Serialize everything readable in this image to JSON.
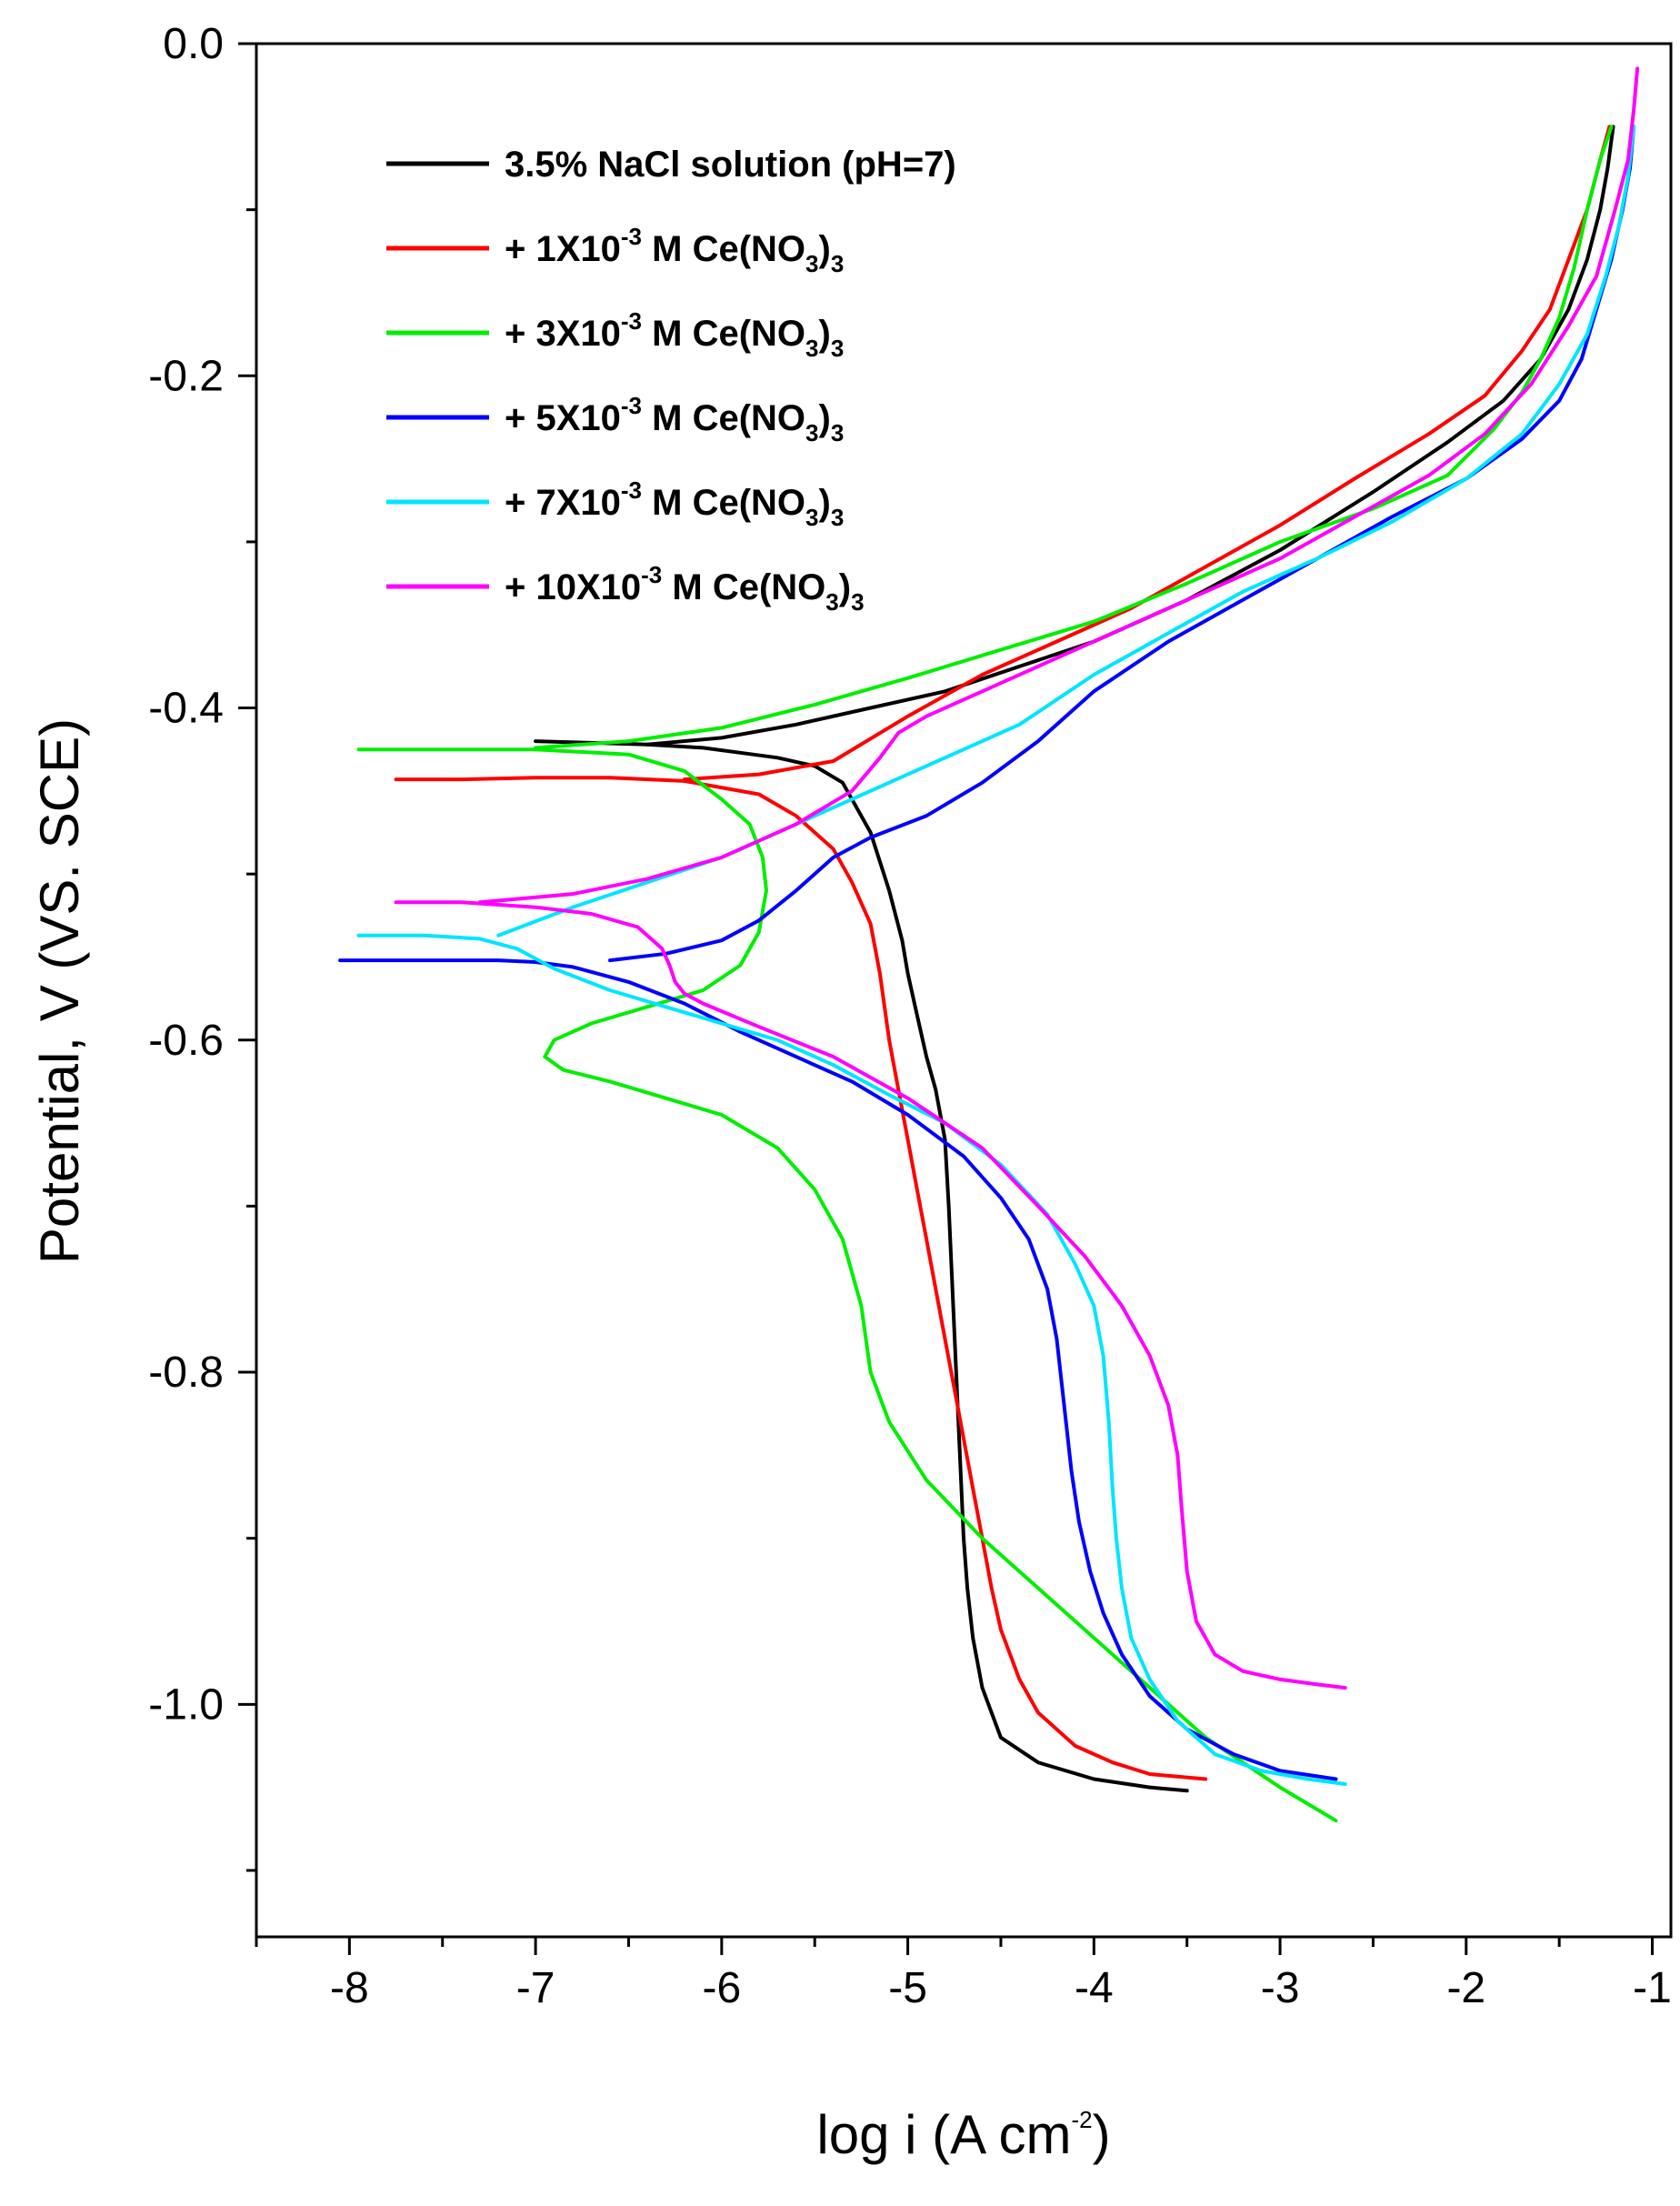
{
  "chart_data": {
    "type": "line",
    "title": "",
    "xlabel": "log i (A cm⁻²)",
    "xlabel_parts": {
      "main": "log i (A cm",
      "sup": "-2",
      "close": ")"
    },
    "ylabel": "Potential, V (VS. SCE)",
    "xlim": [
      -8.5,
      -0.9
    ],
    "ylim": [
      -1.14,
      0.0
    ],
    "xticks": [
      -8,
      -7,
      -6,
      -5,
      -4,
      -3,
      -2,
      -1
    ],
    "xtick_labels": [
      "-8",
      "-7",
      "-6",
      "-5",
      "-4",
      "-3",
      "-2",
      "-1"
    ],
    "yticks": [
      0.0,
      -0.2,
      -0.4,
      -0.6,
      -0.8,
      -1.0
    ],
    "ytick_labels": [
      "0.0",
      "-0.2",
      "-0.4",
      "-0.6",
      "-0.8",
      "-1.0"
    ],
    "grid": false,
    "legend_position": "top-left",
    "series": [
      {
        "name": "3.5% NaCl solution (pH=7)",
        "label_parts": {
          "main": "3.5%  NaCl solution (pH=7)"
        },
        "color": "#000000",
        "x": [
          -7.0,
          -6.7,
          -6.4,
          -6.1,
          -5.9,
          -5.7,
          -5.5,
          -5.35,
          -5.2,
          -5.1,
          -5.03,
          -5.0,
          -4.95,
          -4.9,
          -4.85,
          -4.8,
          -4.78,
          -4.76,
          -4.74,
          -4.72,
          -4.7,
          -4.68,
          -4.65,
          -4.6,
          -4.55,
          -4.5,
          -4.3,
          -4.0,
          -3.7,
          -3.5
        ],
        "y": [
          -0.42,
          -0.421,
          -0.422,
          -0.424,
          -0.427,
          -0.43,
          -0.435,
          -0.445,
          -0.475,
          -0.51,
          -0.54,
          -0.56,
          -0.585,
          -0.61,
          -0.63,
          -0.66,
          -0.7,
          -0.75,
          -0.8,
          -0.85,
          -0.9,
          -0.93,
          -0.96,
          -0.99,
          -1.005,
          -1.02,
          -1.035,
          -1.045,
          -1.05,
          -1.052
        ],
        "anodic_x": [
          -6.4,
          -6.0,
          -5.6,
          -5.2,
          -4.8,
          -4.4,
          -4.0,
          -3.5,
          -3.0,
          -2.5,
          -2.1,
          -1.8,
          -1.6,
          -1.45,
          -1.35,
          -1.28,
          -1.24,
          -1.21
        ],
        "anodic_y": [
          -0.422,
          -0.418,
          -0.41,
          -0.4,
          -0.39,
          -0.375,
          -0.36,
          -0.335,
          -0.305,
          -0.27,
          -0.24,
          -0.215,
          -0.19,
          -0.16,
          -0.13,
          -0.1,
          -0.075,
          -0.05
        ]
      },
      {
        "name": "+ 1X10-3 M Ce(NO3)3",
        "label_parts": {
          "pre": "+ 1X10",
          "sup": "-3",
          "mid": " M Ce(NO",
          "sub": "3",
          "post": ")",
          "sub2": "3"
        },
        "color": "#ff0000",
        "x": [
          -7.75,
          -7.4,
          -7.0,
          -6.6,
          -6.2,
          -5.8,
          -5.6,
          -5.4,
          -5.3,
          -5.2,
          -5.15,
          -5.1,
          -5.05,
          -5.0,
          -4.95,
          -4.9,
          -4.85,
          -4.8,
          -4.75,
          -4.7,
          -4.65,
          -4.6,
          -4.55,
          -4.5,
          -4.4,
          -4.3,
          -4.1,
          -3.9,
          -3.7,
          -3.4
        ],
        "y": [
          -0.443,
          -0.443,
          -0.442,
          -0.442,
          -0.444,
          -0.452,
          -0.465,
          -0.485,
          -0.505,
          -0.53,
          -0.56,
          -0.6,
          -0.63,
          -0.66,
          -0.69,
          -0.72,
          -0.75,
          -0.78,
          -0.81,
          -0.84,
          -0.87,
          -0.9,
          -0.93,
          -0.955,
          -0.985,
          -1.005,
          -1.025,
          -1.035,
          -1.042,
          -1.045
        ],
        "anodic_x": [
          -6.2,
          -5.8,
          -5.4,
          -5.0,
          -4.6,
          -4.2,
          -3.8,
          -3.4,
          -3.0,
          -2.6,
          -2.2,
          -1.9,
          -1.7,
          -1.55,
          -1.45,
          -1.35,
          -1.28,
          -1.23
        ],
        "anodic_y": [
          -0.443,
          -0.44,
          -0.432,
          -0.405,
          -0.38,
          -0.36,
          -0.34,
          -0.315,
          -0.29,
          -0.262,
          -0.235,
          -0.212,
          -0.185,
          -0.16,
          -0.13,
          -0.1,
          -0.07,
          -0.05
        ]
      },
      {
        "name": "+ 3X10-3 M Ce(NO3)3",
        "label_parts": {
          "pre": "+ 3X10",
          "sup": "-3",
          "mid": " M Ce(NO",
          "sub": "3",
          "post": ")",
          "sub2": "3"
        },
        "color": "#00ee00",
        "x": [
          -7.95,
          -7.5,
          -7.0,
          -6.5,
          -6.2,
          -6.0,
          -5.85,
          -5.78,
          -5.76,
          -5.8,
          -5.9,
          -6.1,
          -6.4,
          -6.7,
          -6.9,
          -6.95,
          -6.85,
          -6.6,
          -6.3,
          -6.0,
          -5.7,
          -5.5,
          -5.35,
          -5.25,
          -5.2,
          -5.1,
          -4.9,
          -4.6,
          -4.2,
          -3.8,
          -3.4,
          -3.0,
          -2.7
        ],
        "y": [
          -0.425,
          -0.425,
          -0.425,
          -0.428,
          -0.438,
          -0.455,
          -0.47,
          -0.49,
          -0.51,
          -0.535,
          -0.555,
          -0.57,
          -0.58,
          -0.59,
          -0.6,
          -0.61,
          -0.618,
          -0.625,
          -0.635,
          -0.645,
          -0.665,
          -0.69,
          -0.72,
          -0.76,
          -0.8,
          -0.83,
          -0.865,
          -0.9,
          -0.94,
          -0.98,
          -1.02,
          -1.05,
          -1.07
        ],
        "anodic_x": [
          -7.0,
          -6.5,
          -6.0,
          -5.5,
          -5.0,
          -4.5,
          -4.0,
          -3.5,
          -3.0,
          -2.5,
          -2.1,
          -1.85,
          -1.7,
          -1.6,
          -1.5,
          -1.42,
          -1.35,
          -1.28,
          -1.22
        ],
        "anodic_y": [
          -0.424,
          -0.42,
          -0.412,
          -0.398,
          -0.382,
          -0.365,
          -0.348,
          -0.325,
          -0.3,
          -0.28,
          -0.26,
          -0.232,
          -0.21,
          -0.19,
          -0.165,
          -0.135,
          -0.1,
          -0.07,
          -0.05
        ]
      },
      {
        "name": "+ 5X10-3 M Ce(NO3)3",
        "label_parts": {
          "pre": "+ 5X10",
          "sup": "-3",
          "mid": " M Ce(NO",
          "sub": "3",
          "post": ")",
          "sub2": "3"
        },
        "color": "#0000ff",
        "x": [
          -8.05,
          -7.6,
          -7.2,
          -7.0,
          -6.8,
          -6.5,
          -6.2,
          -5.9,
          -5.6,
          -5.3,
          -5.0,
          -4.7,
          -4.5,
          -4.35,
          -4.25,
          -4.2,
          -4.18,
          -4.15,
          -4.12,
          -4.08,
          -4.02,
          -3.95,
          -3.85,
          -3.7,
          -3.5,
          -3.25,
          -3.0,
          -2.7
        ],
        "y": [
          -0.552,
          -0.552,
          -0.552,
          -0.553,
          -0.556,
          -0.565,
          -0.578,
          -0.595,
          -0.61,
          -0.625,
          -0.645,
          -0.67,
          -0.695,
          -0.72,
          -0.75,
          -0.78,
          -0.8,
          -0.83,
          -0.86,
          -0.89,
          -0.92,
          -0.945,
          -0.97,
          -0.995,
          -1.015,
          -1.03,
          -1.04,
          -1.045
        ],
        "anodic_x": [
          -6.6,
          -6.3,
          -6.0,
          -5.8,
          -5.6,
          -5.4,
          -5.2,
          -4.9,
          -4.6,
          -4.3,
          -4.0,
          -3.6,
          -3.2,
          -2.8,
          -2.4,
          -2.0,
          -1.7,
          -1.5,
          -1.38,
          -1.3,
          -1.22,
          -1.16,
          -1.12,
          -1.1
        ],
        "anodic_y": [
          -0.552,
          -0.548,
          -0.54,
          -0.528,
          -0.51,
          -0.49,
          -0.478,
          -0.465,
          -0.445,
          -0.42,
          -0.39,
          -0.36,
          -0.335,
          -0.31,
          -0.285,
          -0.262,
          -0.238,
          -0.215,
          -0.19,
          -0.16,
          -0.13,
          -0.1,
          -0.075,
          -0.05
        ]
      },
      {
        "name": "+ 7X10-3 M Ce(NO3)3",
        "label_parts": {
          "pre": "+ 7X10",
          "sup": "-3",
          "mid": " M Ce(NO",
          "sub": "3",
          "post": ")",
          "sub2": "3"
        },
        "color": "#00e5ff",
        "x": [
          -7.95,
          -7.6,
          -7.3,
          -7.1,
          -6.9,
          -6.6,
          -6.3,
          -6.0,
          -5.7,
          -5.4,
          -5.1,
          -4.8,
          -4.5,
          -4.25,
          -4.1,
          -4.0,
          -3.95,
          -3.92,
          -3.9,
          -3.88,
          -3.85,
          -3.8,
          -3.7,
          -3.55,
          -3.35,
          -3.1,
          -2.85,
          -2.65
        ],
        "y": [
          -0.537,
          -0.537,
          -0.539,
          -0.545,
          -0.557,
          -0.57,
          -0.58,
          -0.59,
          -0.6,
          -0.615,
          -0.633,
          -0.65,
          -0.675,
          -0.705,
          -0.735,
          -0.76,
          -0.79,
          -0.83,
          -0.87,
          -0.9,
          -0.93,
          -0.96,
          -0.985,
          -1.01,
          -1.03,
          -1.04,
          -1.045,
          -1.048
        ],
        "anodic_x": [
          -7.2,
          -6.8,
          -6.4,
          -6.0,
          -5.6,
          -5.2,
          -4.8,
          -4.4,
          -4.0,
          -3.6,
          -3.2,
          -2.8,
          -2.4,
          -2.0,
          -1.7,
          -1.5,
          -1.35,
          -1.25,
          -1.18,
          -1.13,
          -1.1
        ],
        "anodic_y": [
          -0.537,
          -0.52,
          -0.505,
          -0.49,
          -0.47,
          -0.45,
          -0.43,
          -0.41,
          -0.38,
          -0.355,
          -0.33,
          -0.31,
          -0.288,
          -0.262,
          -0.235,
          -0.205,
          -0.175,
          -0.14,
          -0.11,
          -0.08,
          -0.05
        ]
      },
      {
        "name": "+ 10X10-3 M Ce(NO3)3",
        "label_parts": {
          "pre": "+ 10X10",
          "sup": "-3",
          "mid": " M Ce(NO",
          "sub": "3",
          "post": ")",
          "sub2": "3"
        },
        "color": "#ff00ff",
        "x": [
          -7.75,
          -7.4,
          -7.0,
          -6.7,
          -6.45,
          -6.32,
          -6.28,
          -6.25,
          -6.2,
          -6.1,
          -5.8,
          -5.4,
          -5.0,
          -4.6,
          -4.3,
          -4.05,
          -3.85,
          -3.7,
          -3.6,
          -3.55,
          -3.53,
          -3.5,
          -3.45,
          -3.35,
          -3.2,
          -3.0,
          -2.8,
          -2.65
        ],
        "y": [
          -0.517,
          -0.517,
          -0.52,
          -0.524,
          -0.532,
          -0.545,
          -0.555,
          -0.565,
          -0.572,
          -0.578,
          -0.592,
          -0.61,
          -0.635,
          -0.665,
          -0.7,
          -0.73,
          -0.76,
          -0.79,
          -0.82,
          -0.85,
          -0.88,
          -0.92,
          -0.95,
          -0.97,
          -0.98,
          -0.985,
          -0.988,
          -0.99
        ],
        "anodic_x": [
          -7.3,
          -6.8,
          -6.4,
          -6.0,
          -5.6,
          -5.3,
          -5.15,
          -5.05,
          -4.9,
          -4.6,
          -4.2,
          -3.8,
          -3.4,
          -3.0,
          -2.6,
          -2.2,
          -1.9,
          -1.65,
          -1.45,
          -1.3,
          -1.2,
          -1.13,
          -1.1,
          -1.08
        ],
        "anodic_y": [
          -0.517,
          -0.512,
          -0.503,
          -0.49,
          -0.47,
          -0.45,
          -0.43,
          -0.415,
          -0.405,
          -0.39,
          -0.37,
          -0.35,
          -0.33,
          -0.31,
          -0.285,
          -0.26,
          -0.235,
          -0.205,
          -0.17,
          -0.14,
          -0.1,
          -0.07,
          -0.04,
          -0.015
        ]
      }
    ]
  }
}
